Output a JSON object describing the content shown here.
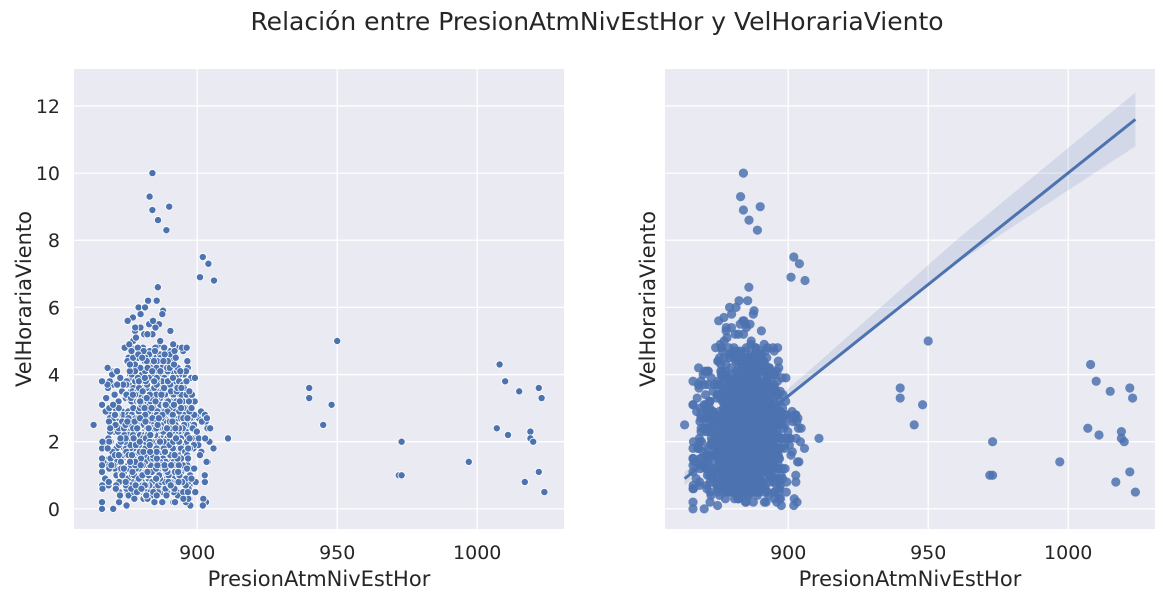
{
  "figure": {
    "title": "Relación entre PresionAtmNivEstHor y VelHorariaViento"
  },
  "colors": {
    "background": "#eaeaf2",
    "marker": "#4c72b0",
    "grid": "#ffffff"
  },
  "chart_data": [
    {
      "type": "scatter",
      "xlabel": "PresionAtmNivEstHor",
      "ylabel": "VelHorariaViento",
      "xlim": [
        856,
        1031
      ],
      "ylim": [
        -0.6,
        13.1
      ],
      "xticks": [
        900,
        950,
        1000
      ],
      "yticks": [
        0,
        2,
        4,
        6,
        8,
        10,
        12
      ],
      "tick_labels_x": [
        "900",
        "950",
        "1000"
      ],
      "tick_labels_y": [
        "0",
        "2",
        "4",
        "6",
        "8",
        "10",
        "12"
      ],
      "grid": true,
      "dense_cluster": {
        "x_range": [
          866,
          910
        ],
        "y_range": [
          0,
          8.1
        ],
        "peak_x": 884
      },
      "points": [
        {
          "x": 884,
          "y": 10.0
        },
        {
          "x": 883,
          "y": 9.3
        },
        {
          "x": 884,
          "y": 8.9
        },
        {
          "x": 886,
          "y": 8.6
        },
        {
          "x": 889,
          "y": 8.3
        },
        {
          "x": 890,
          "y": 9.0
        },
        {
          "x": 902,
          "y": 7.5
        },
        {
          "x": 904,
          "y": 7.3
        },
        {
          "x": 901,
          "y": 6.9
        },
        {
          "x": 906,
          "y": 6.8
        },
        {
          "x": 863,
          "y": 2.5
        },
        {
          "x": 866,
          "y": 3.8
        },
        {
          "x": 868,
          "y": 4.2
        },
        {
          "x": 870,
          "y": 0.0
        },
        {
          "x": 902,
          "y": 0.1
        },
        {
          "x": 911,
          "y": 2.1
        },
        {
          "x": 940,
          "y": 3.6
        },
        {
          "x": 940,
          "y": 3.3
        },
        {
          "x": 950,
          "y": 5.0
        },
        {
          "x": 945,
          "y": 2.5
        },
        {
          "x": 948,
          "y": 3.1
        },
        {
          "x": 972,
          "y": 1.0
        },
        {
          "x": 973,
          "y": 1.0
        },
        {
          "x": 973,
          "y": 2.0
        },
        {
          "x": 997,
          "y": 1.4
        },
        {
          "x": 1008,
          "y": 4.3
        },
        {
          "x": 1010,
          "y": 3.8
        },
        {
          "x": 1007,
          "y": 2.4
        },
        {
          "x": 1011,
          "y": 2.2
        },
        {
          "x": 1015,
          "y": 3.5
        },
        {
          "x": 1017,
          "y": 0.8
        },
        {
          "x": 1019,
          "y": 2.3
        },
        {
          "x": 1019,
          "y": 2.1
        },
        {
          "x": 1020,
          "y": 2.0
        },
        {
          "x": 1022,
          "y": 3.6
        },
        {
          "x": 1023,
          "y": 3.3
        },
        {
          "x": 1022,
          "y": 1.1
        },
        {
          "x": 1024,
          "y": 0.5
        }
      ]
    },
    {
      "type": "scatter",
      "xlabel": "PresionAtmNivEstHor",
      "ylabel": "VelHorariaViento",
      "xlim": [
        856,
        1031
      ],
      "ylim": [
        -0.6,
        13.1
      ],
      "xticks": [
        900,
        950,
        1000
      ],
      "yticks": [
        0,
        2,
        4,
        6,
        8,
        10,
        12
      ],
      "tick_labels_x": [
        "900",
        "950",
        "1000"
      ],
      "shared_y": true,
      "grid": true,
      "regression_line": {
        "x": [
          863,
          1024
        ],
        "y": [
          0.9,
          11.6
        ]
      },
      "confidence_band": {
        "x": [
          863,
          885,
          910,
          960,
          1024
        ],
        "lower": [
          0.7,
          2.3,
          4.0,
          7.3,
          10.8
        ],
        "upper": [
          1.1,
          2.5,
          4.3,
          8.0,
          12.4
        ]
      }
    }
  ]
}
